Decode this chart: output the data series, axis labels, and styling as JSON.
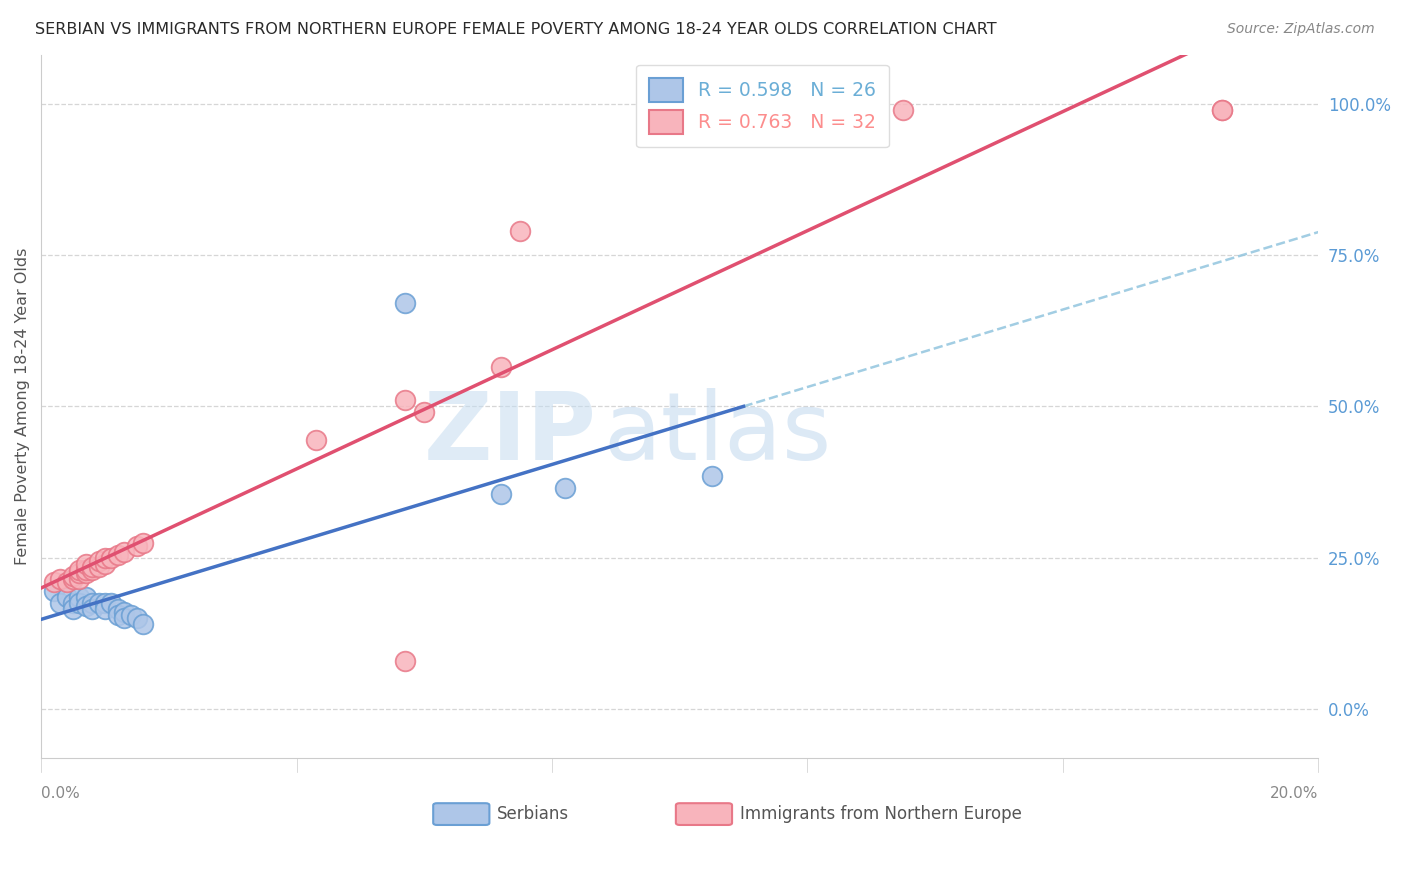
{
  "title": "SERBIAN VS IMMIGRANTS FROM NORTHERN EUROPE FEMALE POVERTY AMONG 18-24 YEAR OLDS CORRELATION CHART",
  "source": "Source: ZipAtlas.com",
  "ylabel": "Female Poverty Among 18-24 Year Olds",
  "right_yticks": [
    0.0,
    0.25,
    0.5,
    0.75,
    1.0
  ],
  "right_yticklabels": [
    "0.0%",
    "25.0%",
    "50.0%",
    "75.0%",
    "100.0%"
  ],
  "xlim": [
    0.0,
    0.2
  ],
  "ylim": [
    -0.08,
    1.08
  ],
  "legend_entry1": "R = 0.598   N = 26",
  "legend_entry2": "R = 0.763   N = 32",
  "legend_color1": "#6BAED6",
  "legend_color2": "#FC8D8D",
  "watermark_zip": "ZIP",
  "watermark_atlas": "atlas",
  "serbian_scatter": [
    [
      0.002,
      0.195
    ],
    [
      0.003,
      0.175
    ],
    [
      0.004,
      0.185
    ],
    [
      0.005,
      0.175
    ],
    [
      0.005,
      0.165
    ],
    [
      0.006,
      0.185
    ],
    [
      0.006,
      0.175
    ],
    [
      0.007,
      0.185
    ],
    [
      0.007,
      0.17
    ],
    [
      0.008,
      0.175
    ],
    [
      0.008,
      0.165
    ],
    [
      0.009,
      0.175
    ],
    [
      0.01,
      0.175
    ],
    [
      0.01,
      0.165
    ],
    [
      0.011,
      0.175
    ],
    [
      0.012,
      0.165
    ],
    [
      0.012,
      0.155
    ],
    [
      0.013,
      0.16
    ],
    [
      0.013,
      0.15
    ],
    [
      0.014,
      0.155
    ],
    [
      0.015,
      0.15
    ],
    [
      0.016,
      0.14
    ],
    [
      0.057,
      0.67
    ],
    [
      0.072,
      0.355
    ],
    [
      0.082,
      0.365
    ],
    [
      0.105,
      0.385
    ]
  ],
  "immigrants_scatter": [
    [
      0.002,
      0.21
    ],
    [
      0.003,
      0.215
    ],
    [
      0.004,
      0.21
    ],
    [
      0.005,
      0.215
    ],
    [
      0.005,
      0.22
    ],
    [
      0.006,
      0.215
    ],
    [
      0.006,
      0.225
    ],
    [
      0.006,
      0.23
    ],
    [
      0.007,
      0.225
    ],
    [
      0.007,
      0.23
    ],
    [
      0.007,
      0.24
    ],
    [
      0.008,
      0.23
    ],
    [
      0.008,
      0.235
    ],
    [
      0.009,
      0.235
    ],
    [
      0.009,
      0.245
    ],
    [
      0.01,
      0.24
    ],
    [
      0.01,
      0.25
    ],
    [
      0.011,
      0.25
    ],
    [
      0.012,
      0.255
    ],
    [
      0.013,
      0.26
    ],
    [
      0.015,
      0.27
    ],
    [
      0.016,
      0.275
    ],
    [
      0.043,
      0.445
    ],
    [
      0.057,
      0.51
    ],
    [
      0.06,
      0.49
    ],
    [
      0.072,
      0.565
    ],
    [
      0.075,
      0.79
    ],
    [
      0.057,
      0.08
    ],
    [
      0.095,
      0.99
    ],
    [
      0.135,
      0.99
    ],
    [
      0.185,
      0.99
    ],
    [
      0.185,
      0.99
    ]
  ],
  "serbian_line_color": "#4472C4",
  "immigrants_line_color": "#E05070",
  "scatter_serbian_facecolor": "#AEC6E8",
  "scatter_serbian_edgecolor": "#6A9FD4",
  "scatter_immigrants_facecolor": "#F8B4BC",
  "scatter_immigrants_edgecolor": "#E87888",
  "grid_color": "#CCCCCC",
  "background_color": "#FFFFFF",
  "title_color": "#333333",
  "right_axis_color": "#5B9BD5",
  "dashed_line_color": "#92C5DE"
}
